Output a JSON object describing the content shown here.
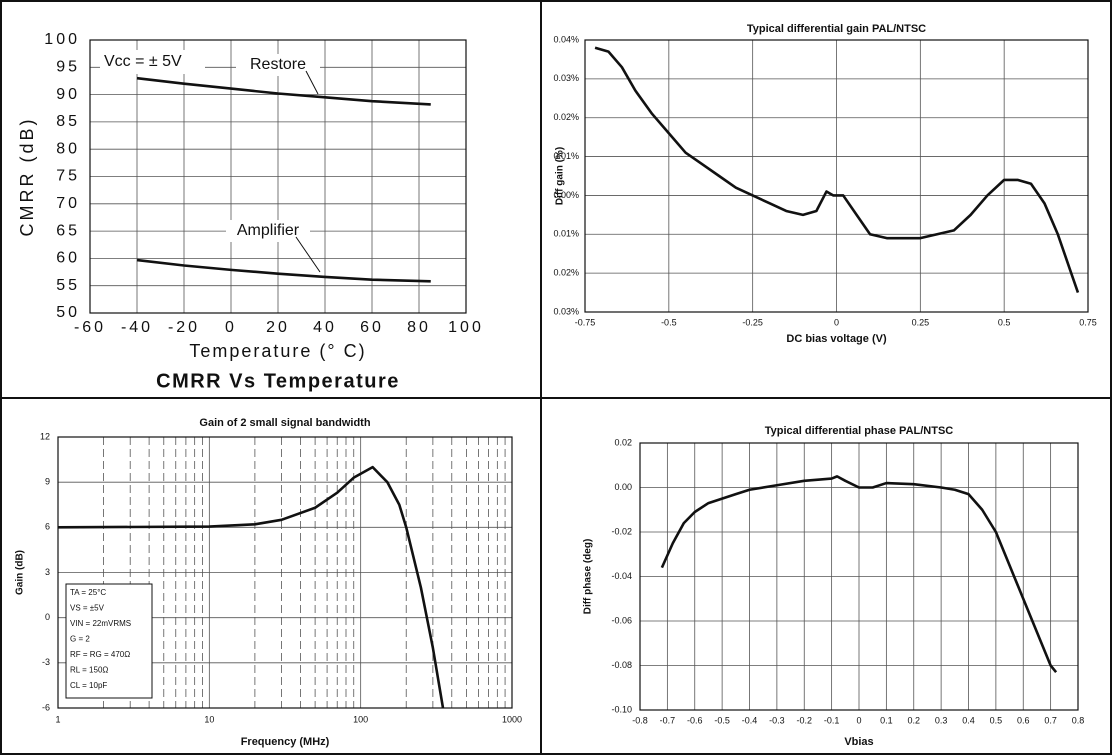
{
  "chart_data": [
    {
      "type": "line",
      "title": "CMRR Vs Temperature",
      "x_label": "Temperature (° C)",
      "y_label": "CMRR (dB)",
      "x": [
        -40,
        -20,
        0,
        20,
        40,
        60,
        85
      ],
      "series": [
        {
          "name": "Restore",
          "color": "#111111",
          "values": [
            93,
            92,
            91.1,
            90.2,
            89.5,
            88.8,
            88.2
          ]
        },
        {
          "name": "Amplifier",
          "color": "#111111",
          "values": [
            59.7,
            58.7,
            57.9,
            57.2,
            56.6,
            56.1,
            55.8
          ]
        }
      ],
      "annotations": [
        "Vcc = ± 5V"
      ],
      "xlim": [
        -60,
        100
      ],
      "xticks": [
        -60,
        -40,
        -20,
        0,
        20,
        40,
        60,
        80,
        100
      ],
      "ylim": [
        50,
        100
      ],
      "yticks": [
        50,
        55,
        60,
        65,
        70,
        75,
        80,
        85,
        90,
        95,
        100
      ],
      "grid": true
    },
    {
      "type": "line",
      "title": "Typical differential gain PAL/NTSC",
      "x_label": "DC bias voltage (V)",
      "y_label": "Diff gain (%)",
      "x": [
        -0.72,
        -0.68,
        -0.64,
        -0.6,
        -0.55,
        -0.5,
        -0.45,
        -0.4,
        -0.35,
        -0.3,
        -0.25,
        -0.2,
        -0.15,
        -0.1,
        -0.06,
        -0.03,
        -0.01,
        0.02,
        0.06,
        0.1,
        0.15,
        0.2,
        0.25,
        0.3,
        0.35,
        0.4,
        0.45,
        0.5,
        0.54,
        0.58,
        0.62,
        0.66,
        0.7,
        0.72
      ],
      "series": [
        {
          "name": "Diff gain",
          "color": "#111111",
          "values": [
            0.038,
            0.037,
            0.033,
            0.027,
            0.021,
            0.016,
            0.011,
            0.008,
            0.005,
            0.002,
            0.0,
            -0.002,
            -0.004,
            -0.005,
            -0.004,
            0.001,
            0.0,
            0.0,
            -0.005,
            -0.01,
            -0.011,
            -0.011,
            -0.011,
            -0.01,
            -0.009,
            -0.005,
            0.0,
            0.004,
            0.004,
            0.003,
            -0.002,
            -0.01,
            -0.02,
            -0.025
          ]
        }
      ],
      "xlim": [
        -0.75,
        0.75
      ],
      "xticks": [
        -0.75,
        -0.5,
        -0.25,
        0,
        0.25,
        0.5,
        0.75
      ],
      "ylim": [
        -0.03,
        0.04
      ],
      "yticks": [
        {
          "value": -0.03,
          "label": "0.03%"
        },
        {
          "value": -0.02,
          "label": "0.02%"
        },
        {
          "value": -0.01,
          "label": "0.01%"
        },
        {
          "value": 0,
          "label": "0.00%"
        },
        {
          "value": 0.01,
          "label": "0.01%"
        },
        {
          "value": 0.02,
          "label": "0.02%"
        },
        {
          "value": 0.03,
          "label": "0.03%"
        },
        {
          "value": 0.04,
          "label": "0.04%"
        }
      ],
      "grid": true
    },
    {
      "type": "line",
      "title": "Gain of 2 small signal bandwidth",
      "x_label": "Frequency (MHz)",
      "y_label": "Gain (dB)",
      "x": [
        1,
        10,
        20,
        30,
        50,
        70,
        90,
        120,
        150,
        180,
        200,
        250,
        300,
        350
      ],
      "series": [
        {
          "name": "Gain",
          "color": "#111111",
          "values": [
            6,
            6.05,
            6.2,
            6.5,
            7.3,
            8.3,
            9.3,
            10,
            9,
            7.5,
            6,
            2,
            -2,
            -6
          ]
        }
      ],
      "notes": [
        "TA = 25°C",
        "VS = ±5V",
        "VIN = 22mVRMS",
        "G = 2",
        "RF = RG = 470Ω",
        "RL = 150Ω",
        "CL = 10pF"
      ],
      "xscale": "log",
      "xlim": [
        1,
        1000
      ],
      "xticks": [
        1,
        10,
        100,
        1000
      ],
      "ylim": [
        -6,
        12
      ],
      "yticks": [
        -6,
        -3,
        0,
        3,
        6,
        9,
        12
      ],
      "grid": true
    },
    {
      "type": "line",
      "title": "Typical differential phase PAL/NTSC",
      "x_label": "Vbias",
      "y_label": "Diff phase (deg)",
      "x": [
        -0.72,
        -0.68,
        -0.64,
        -0.6,
        -0.55,
        -0.5,
        -0.45,
        -0.4,
        -0.3,
        -0.2,
        -0.1,
        -0.08,
        -0.05,
        0,
        0.05,
        0.1,
        0.2,
        0.3,
        0.35,
        0.4,
        0.45,
        0.5,
        0.55,
        0.6,
        0.65,
        0.7,
        0.72
      ],
      "series": [
        {
          "name": "Diff phase",
          "color": "#111111",
          "values": [
            -0.036,
            -0.025,
            -0.016,
            -0.011,
            -0.007,
            -0.005,
            -0.003,
            -0.001,
            0.001,
            0.003,
            0.004,
            0.005,
            0.003,
            0.0,
            0.0,
            0.002,
            0.0015,
            0.0,
            -0.001,
            -0.003,
            -0.01,
            -0.02,
            -0.035,
            -0.05,
            -0.065,
            -0.08,
            -0.083
          ]
        }
      ],
      "xlim": [
        -0.8,
        0.8
      ],
      "xticks": [
        -0.8,
        -0.7,
        -0.6,
        -0.5,
        -0.4,
        -0.3,
        -0.2,
        -0.1,
        0,
        0.1,
        0.2,
        0.3,
        0.4,
        0.5,
        0.6,
        0.7,
        0.8
      ],
      "ylim": [
        -0.1,
        0.02
      ],
      "yticks": [
        {
          "value": -0.1,
          "label": "-0.10"
        },
        -0.08,
        -0.06,
        -0.04,
        -0.02,
        {
          "value": 0,
          "label": "0.00"
        },
        0.02
      ],
      "grid": true
    }
  ]
}
